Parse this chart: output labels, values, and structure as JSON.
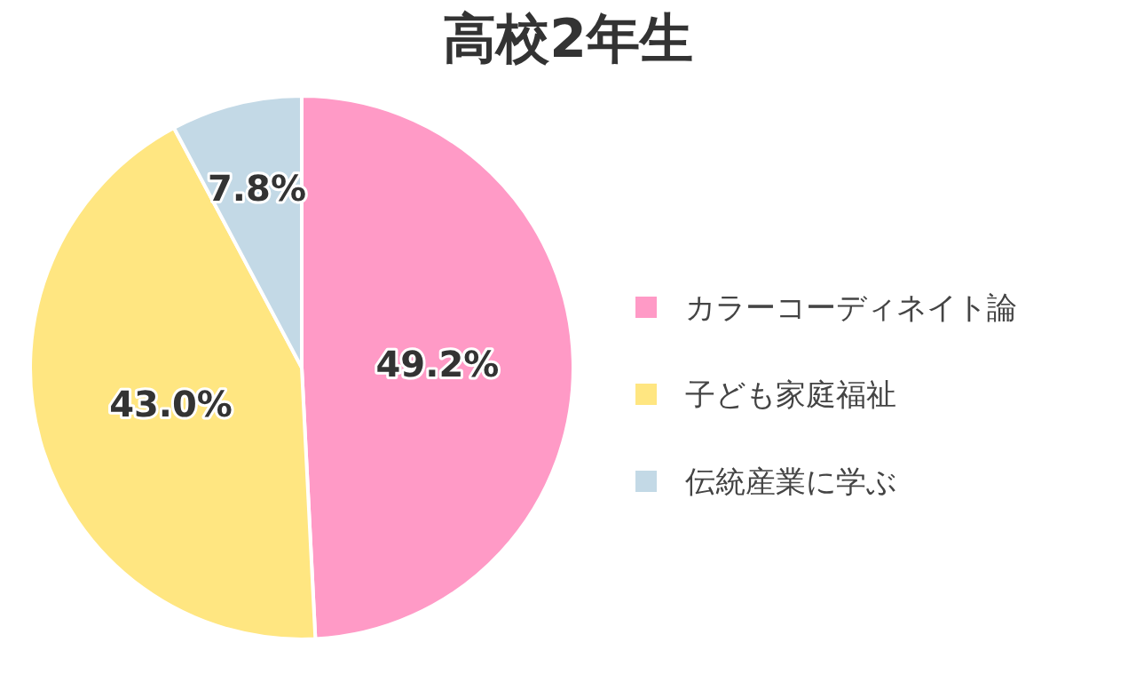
{
  "chart_data": {
    "type": "pie",
    "title": "高校2年生",
    "categories": [
      "カラーコーディネイト論",
      "子ども家庭福祉",
      "伝統産業に学ぶ"
    ],
    "values": [
      49.2,
      43.0,
      7.8
    ],
    "colors": [
      "#ff9ac6",
      "#ffe681",
      "#c3d9e6"
    ],
    "value_labels": [
      "49.2%",
      "43.0%",
      "7.8%"
    ],
    "legend": "right"
  }
}
